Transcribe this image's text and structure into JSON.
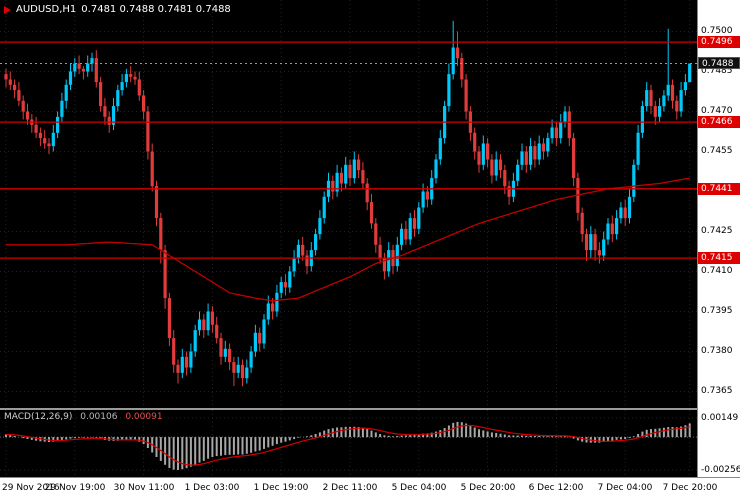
{
  "header": {
    "symbol": "AUDUSD,H1",
    "ohlc": "0.7481 0.7488 0.7481 0.7488"
  },
  "macd_panel": {
    "label": "MACD(12,26,9)",
    "value_main": "0.00106",
    "value_signal": "0.00091",
    "axis_labels": [
      {
        "text": "0.00149",
        "value": 0.00149
      },
      {
        "text": "-0.00256",
        "value": -0.00256
      }
    ]
  },
  "colors": {
    "background": "#000000",
    "up": "#00c8f8",
    "down": "#e23b3b",
    "level_line": "#d40000",
    "ma_line": "#c00000",
    "histogram": "#a8a8a8",
    "signal": "#d40000",
    "grid": "#232323",
    "bid_line": "#9a9a9a",
    "axis_bg": "#ffffff",
    "axis_text": "#000000",
    "tag_red_bg": "#dd0000",
    "tag_current_bg": "#101010"
  },
  "price_axis": {
    "labels": [
      {
        "text": "0.7500",
        "price": 0.75
      },
      {
        "text": "0.7485",
        "price": 0.7485
      },
      {
        "text": "0.7470",
        "price": 0.747
      },
      {
        "text": "0.7455",
        "price": 0.7455
      },
      {
        "text": "0.7425",
        "price": 0.7425
      },
      {
        "text": "0.7410",
        "price": 0.741
      },
      {
        "text": "0.7395",
        "price": 0.7395
      },
      {
        "text": "0.7380",
        "price": 0.738
      },
      {
        "text": "0.7365",
        "price": 0.7365
      }
    ],
    "tags": [
      {
        "text": "0.7496",
        "price": 0.7496,
        "type": "level"
      },
      {
        "text": "0.7488",
        "price": 0.7488,
        "type": "current"
      },
      {
        "text": "0.7466",
        "price": 0.7466,
        "type": "level"
      },
      {
        "text": "0.7441",
        "price": 0.7441,
        "type": "level"
      },
      {
        "text": "0.7415",
        "price": 0.7415,
        "type": "level"
      }
    ]
  },
  "time_axis": {
    "labels": [
      {
        "text": "29 Nov 2016",
        "index": 0
      },
      {
        "text": "29 Nov 19:00",
        "index": 16
      },
      {
        "text": "30 Nov 11:00",
        "index": 32
      },
      {
        "text": "1 Dec 03:00",
        "index": 48
      },
      {
        "text": "1 Dec 19:00",
        "index": 64
      },
      {
        "text": "2 Dec 11:00",
        "index": 80
      },
      {
        "text": "5 Dec 04:00",
        "index": 96
      },
      {
        "text": "5 Dec 20:00",
        "index": 112
      },
      {
        "text": "6 Dec 12:00",
        "index": 128
      },
      {
        "text": "7 Dec 04:00",
        "index": 144
      },
      {
        "text": "7 Dec 20:00",
        "index": 159
      }
    ]
  },
  "chart_data": [
    {
      "type": "candlestick",
      "title": "AUDUSD H1",
      "price_scale": 0.0001,
      "ylim": [
        0.73588,
        0.75118
      ],
      "levels": [
        0.7496,
        0.7466,
        0.7441,
        0.7415
      ],
      "current_price": 0.7488,
      "candles": [
        [
          7484,
          7486,
          7479,
          7482
        ],
        [
          7482,
          7485,
          7478,
          7480
        ],
        [
          7480,
          7482,
          7475,
          7478
        ],
        [
          7478,
          7481,
          7472,
          7474
        ],
        [
          7474,
          7476,
          7467,
          7470
        ],
        [
          7470,
          7473,
          7465,
          7467
        ],
        [
          7467,
          7469,
          7462,
          7465
        ],
        [
          7465,
          7468,
          7460,
          7462
        ],
        [
          7462,
          7464,
          7457,
          7460
        ],
        [
          7460,
          7463,
          7456,
          7458
        ],
        [
          7458,
          7460,
          7454,
          7457
        ],
        [
          7457,
          7465,
          7455,
          7462
        ],
        [
          7462,
          7470,
          7460,
          7468
        ],
        [
          7468,
          7477,
          7466,
          7474
        ],
        [
          7474,
          7482,
          7471,
          7480
        ],
        [
          7480,
          7488,
          7478,
          7485
        ],
        [
          7485,
          7490,
          7483,
          7488
        ],
        [
          7488,
          7491,
          7484,
          7486
        ],
        [
          7486,
          7487,
          7482,
          7485
        ],
        [
          7485,
          7491,
          7483,
          7488
        ],
        [
          7488,
          7492,
          7485,
          7490
        ],
        [
          7490,
          7493,
          7479,
          7481
        ],
        [
          7481,
          7483,
          7470,
          7472
        ],
        [
          7472,
          7475,
          7465,
          7468
        ],
        [
          7468,
          7470,
          7462,
          7465
        ],
        [
          7465,
          7475,
          7463,
          7472
        ],
        [
          7472,
          7480,
          7470,
          7478
        ],
        [
          7478,
          7484,
          7476,
          7481
        ],
        [
          7481,
          7486,
          7479,
          7484
        ],
        [
          7484,
          7487,
          7481,
          7483
        ],
        [
          7483,
          7485,
          7480,
          7482
        ],
        [
          7482,
          7485,
          7474,
          7476
        ],
        [
          7476,
          7478,
          7467,
          7470
        ],
        [
          7470,
          7472,
          7452,
          7455
        ],
        [
          7455,
          7458,
          7440,
          7442
        ],
        [
          7442,
          7444,
          7427,
          7430
        ],
        [
          7430,
          7432,
          7413,
          7418
        ],
        [
          7418,
          7420,
          7396,
          7400
        ],
        [
          7400,
          7402,
          7382,
          7385
        ],
        [
          7385,
          7388,
          7372,
          7375
        ],
        [
          7375,
          7377,
          7368,
          7372
        ],
        [
          7372,
          7381,
          7370,
          7378
        ],
        [
          7378,
          7380,
          7371,
          7374
        ],
        [
          7374,
          7383,
          7372,
          7380
        ],
        [
          7380,
          7390,
          7378,
          7388
        ],
        [
          7388,
          7395,
          7386,
          7392
        ],
        [
          7392,
          7394,
          7385,
          7388
        ],
        [
          7388,
          7398,
          7386,
          7395
        ],
        [
          7395,
          7397,
          7387,
          7390
        ],
        [
          7390,
          7393,
          7383,
          7385
        ],
        [
          7385,
          7387,
          7375,
          7378
        ],
        [
          7378,
          7384,
          7376,
          7381
        ],
        [
          7381,
          7383,
          7373,
          7376
        ],
        [
          7376,
          7378,
          7367,
          7372
        ],
        [
          7372,
          7378,
          7370,
          7375
        ],
        [
          7375,
          7377,
          7367,
          7370
        ],
        [
          7370,
          7377,
          7368,
          7374
        ],
        [
          7374,
          7382,
          7372,
          7380
        ],
        [
          7380,
          7390,
          7378,
          7387
        ],
        [
          7387,
          7389,
          7380,
          7383
        ],
        [
          7383,
          7394,
          7381,
          7392
        ],
        [
          7392,
          7401,
          7390,
          7398
        ],
        [
          7398,
          7400,
          7392,
          7395
        ],
        [
          7395,
          7405,
          7393,
          7402
        ],
        [
          7402,
          7408,
          7400,
          7406
        ],
        [
          7406,
          7409,
          7401,
          7404
        ],
        [
          7404,
          7412,
          7402,
          7410
        ],
        [
          7410,
          7418,
          7408,
          7415
        ],
        [
          7415,
          7422,
          7413,
          7420
        ],
        [
          7420,
          7423,
          7414,
          7416
        ],
        [
          7416,
          7418,
          7409,
          7412
        ],
        [
          7412,
          7421,
          7410,
          7418
        ],
        [
          7418,
          7426,
          7416,
          7424
        ],
        [
          7424,
          7433,
          7422,
          7430
        ],
        [
          7430,
          7440,
          7428,
          7438
        ],
        [
          7438,
          7447,
          7436,
          7444
        ],
        [
          7444,
          7446,
          7437,
          7440
        ],
        [
          7440,
          7450,
          7438,
          7447
        ],
        [
          7447,
          7449,
          7440,
          7443
        ],
        [
          7443,
          7453,
          7441,
          7450
        ],
        [
          7450,
          7452,
          7442,
          7445
        ],
        [
          7445,
          7455,
          7443,
          7452
        ],
        [
          7452,
          7454,
          7445,
          7448
        ],
        [
          7448,
          7451,
          7441,
          7443
        ],
        [
          7443,
          7445,
          7433,
          7436
        ],
        [
          7436,
          7439,
          7426,
          7428
        ],
        [
          7428,
          7430,
          7417,
          7420
        ],
        [
          7420,
          7423,
          7413,
          7415
        ],
        [
          7415,
          7417,
          7407,
          7410
        ],
        [
          7410,
          7421,
          7408,
          7418
        ],
        [
          7418,
          7420,
          7409,
          7412
        ],
        [
          7412,
          7423,
          7410,
          7420
        ],
        [
          7420,
          7428,
          7418,
          7426
        ],
        [
          7426,
          7429,
          7420,
          7422
        ],
        [
          7422,
          7432,
          7420,
          7430
        ],
        [
          7430,
          7433,
          7423,
          7426
        ],
        [
          7426,
          7436,
          7424,
          7434
        ],
        [
          7434,
          7443,
          7432,
          7440
        ],
        [
          7440,
          7442,
          7434,
          7437
        ],
        [
          7437,
          7448,
          7435,
          7445
        ],
        [
          7445,
          7454,
          7443,
          7452
        ],
        [
          7452,
          7463,
          7450,
          7460
        ],
        [
          7460,
          7474,
          7458,
          7472
        ],
        [
          7472,
          7488,
          7470,
          7484
        ],
        [
          7484,
          7504,
          7482,
          7494
        ],
        [
          7494,
          7500,
          7487,
          7490
        ],
        [
          7490,
          7492,
          7479,
          7482
        ],
        [
          7482,
          7484,
          7467,
          7470
        ],
        [
          7470,
          7472,
          7459,
          7462
        ],
        [
          7462,
          7464,
          7452,
          7455
        ],
        [
          7455,
          7457,
          7447,
          7450
        ],
        [
          7450,
          7461,
          7448,
          7458
        ],
        [
          7458,
          7460,
          7449,
          7452
        ],
        [
          7452,
          7454,
          7443,
          7446
        ],
        [
          7446,
          7455,
          7444,
          7452
        ],
        [
          7452,
          7454,
          7445,
          7448
        ],
        [
          7448,
          7450,
          7439,
          7442
        ],
        [
          7442,
          7444,
          7435,
          7438
        ],
        [
          7438,
          7447,
          7436,
          7444
        ],
        [
          7444,
          7452,
          7442,
          7450
        ],
        [
          7450,
          7458,
          7448,
          7455
        ],
        [
          7455,
          7457,
          7447,
          7450
        ],
        [
          7450,
          7460,
          7448,
          7457
        ],
        [
          7457,
          7459,
          7449,
          7452
        ],
        [
          7452,
          7461,
          7450,
          7458
        ],
        [
          7458,
          7460,
          7452,
          7455
        ],
        [
          7455,
          7462,
          7453,
          7460
        ],
        [
          7460,
          7467,
          7458,
          7464
        ],
        [
          7464,
          7466,
          7457,
          7460
        ],
        [
          7460,
          7469,
          7458,
          7466
        ],
        [
          7466,
          7472,
          7464,
          7470
        ],
        [
          7470,
          7472,
          7457,
          7460
        ],
        [
          7460,
          7462,
          7442,
          7445
        ],
        [
          7445,
          7447,
          7429,
          7432
        ],
        [
          7432,
          7434,
          7421,
          7424
        ],
        [
          7424,
          7426,
          7414,
          7418
        ],
        [
          7418,
          7427,
          7415,
          7424
        ],
        [
          7424,
          7426,
          7414,
          7418
        ],
        [
          7418,
          7421,
          7413,
          7416
        ],
        [
          7416,
          7425,
          7414,
          7422
        ],
        [
          7422,
          7430,
          7420,
          7428
        ],
        [
          7428,
          7431,
          7421,
          7424
        ],
        [
          7424,
          7433,
          7422,
          7430
        ],
        [
          7430,
          7436,
          7428,
          7434
        ],
        [
          7434,
          7437,
          7427,
          7430
        ],
        [
          7430,
          7441,
          7428,
          7438
        ],
        [
          7438,
          7452,
          7436,
          7450
        ],
        [
          7450,
          7465,
          7448,
          7462
        ],
        [
          7462,
          7474,
          7460,
          7472
        ],
        [
          7472,
          7481,
          7470,
          7478
        ],
        [
          7478,
          7480,
          7469,
          7472
        ],
        [
          7472,
          7474,
          7465,
          7468
        ],
        [
          7468,
          7475,
          7466,
          7472
        ],
        [
          7472,
          7478,
          7470,
          7476
        ],
        [
          7476,
          7501,
          7474,
          7480
        ],
        [
          7480,
          7482,
          7471,
          7474
        ],
        [
          7474,
          7476,
          7467,
          7470
        ],
        [
          7470,
          7481,
          7468,
          7478
        ],
        [
          7478,
          7484,
          7476,
          7481
        ],
        [
          7481,
          7488,
          7481,
          7488
        ]
      ],
      "ma_keyframes": [
        [
          0,
          7420
        ],
        [
          14,
          7420
        ],
        [
          24,
          7421
        ],
        [
          34,
          7420
        ],
        [
          40,
          7414
        ],
        [
          46,
          7408
        ],
        [
          52,
          7402
        ],
        [
          58,
          7400
        ],
        [
          62,
          7399
        ],
        [
          68,
          7400
        ],
        [
          74,
          7404
        ],
        [
          80,
          7408
        ],
        [
          86,
          7413
        ],
        [
          92,
          7416
        ],
        [
          98,
          7420
        ],
        [
          104,
          7424
        ],
        [
          110,
          7428
        ],
        [
          116,
          7431
        ],
        [
          122,
          7434
        ],
        [
          128,
          7437
        ],
        [
          134,
          7439
        ],
        [
          140,
          7441
        ],
        [
          146,
          7442
        ],
        [
          152,
          7443
        ],
        [
          159,
          7445
        ]
      ]
    },
    {
      "type": "bar",
      "title": "MACD(12,26,9)",
      "scale": 1e-05,
      "ylim": [
        -0.0031,
        0.0021
      ],
      "signal_period": 9,
      "last_main": 0.00106,
      "last_signal": 0.00091,
      "values": [
        20,
        15,
        8,
        0,
        -8,
        -15,
        -22,
        -28,
        -33,
        -36,
        -38,
        -35,
        -30,
        -24,
        -18,
        -12,
        -8,
        -6,
        -5,
        -4,
        -3,
        -8,
        -15,
        -22,
        -28,
        -30,
        -28,
        -25,
        -22,
        -20,
        -22,
        -35,
        -55,
        -85,
        -120,
        -155,
        -185,
        -215,
        -240,
        -253,
        -256,
        -250,
        -242,
        -230,
        -215,
        -198,
        -185,
        -168,
        -155,
        -148,
        -145,
        -140,
        -138,
        -138,
        -135,
        -135,
        -130,
        -122,
        -112,
        -105,
        -92,
        -80,
        -68,
        -55,
        -44,
        -36,
        -26,
        -16,
        -6,
        0,
        6,
        14,
        24,
        36,
        50,
        62,
        68,
        74,
        76,
        80,
        78,
        80,
        78,
        72,
        62,
        50,
        36,
        24,
        14,
        10,
        6,
        8,
        12,
        12,
        16,
        16,
        20,
        26,
        28,
        34,
        42,
        54,
        70,
        90,
        110,
        118,
        115,
        105,
        90,
        74,
        60,
        52,
        44,
        36,
        32,
        26,
        20,
        14,
        12,
        12,
        12,
        10,
        10,
        8,
        8,
        6,
        6,
        8,
        6,
        8,
        10,
        2,
        -12,
        -26,
        -36,
        -42,
        -44,
        -44,
        -44,
        -38,
        -32,
        -28,
        -22,
        -18,
        -16,
        -8,
        6,
        24,
        42,
        56,
        62,
        64,
        68,
        72,
        78,
        78,
        76,
        82,
        92,
        106
      ]
    }
  ]
}
